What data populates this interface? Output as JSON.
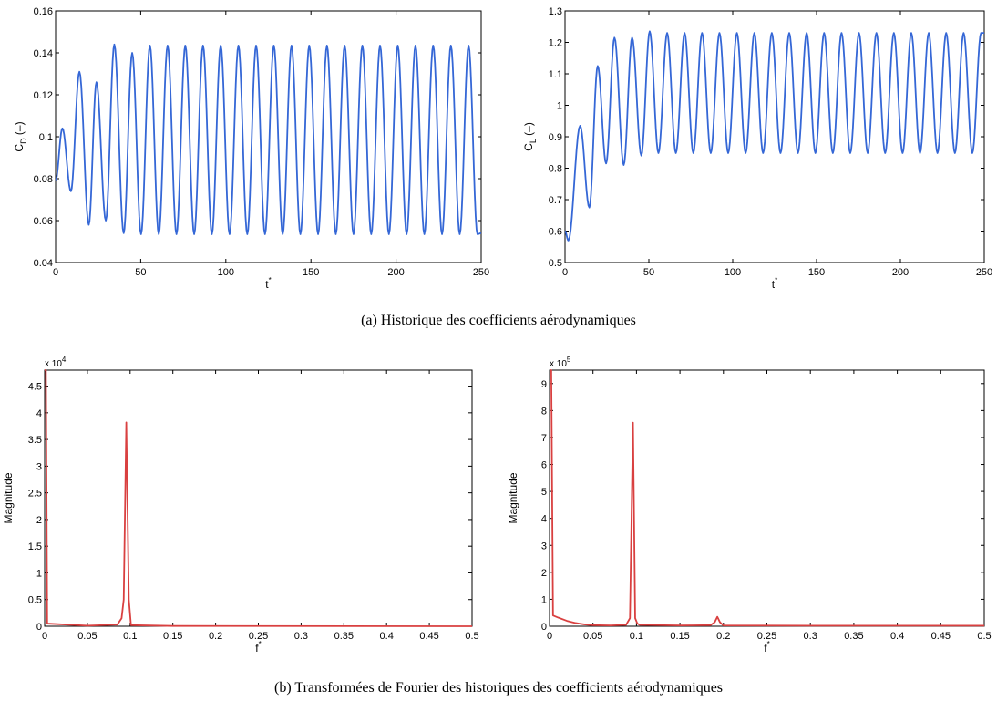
{
  "captions": {
    "a": "(a)  Historique des coefficients aérodynamiques",
    "b": "(b)  Transformées de Fourier des historiques des coefficients aérodynamiques"
  },
  "chart_data": [
    {
      "type": "line",
      "ylabel_main": "C",
      "ylabel_sub": "D",
      "ylabel_unit": " (–)",
      "xlabel_main": "t",
      "xlabel_sup": "*",
      "xlim": [
        0,
        250
      ],
      "ylim": [
        0.04,
        0.16
      ],
      "xticks": [
        0,
        50,
        100,
        150,
        200,
        250
      ],
      "yticks": [
        0.04,
        0.06,
        0.08,
        0.1,
        0.12,
        0.14,
        0.16
      ],
      "yticklabels": [
        "0.04",
        "0.06",
        "0.08",
        "0.1",
        "0.12",
        "0.14",
        "0.16"
      ],
      "color": "#3567d6",
      "signal": {
        "period": 10.4,
        "start_value": 0.079,
        "peaks": [
          [
            4,
            0.104
          ],
          [
            14,
            0.131
          ],
          [
            24,
            0.126
          ],
          [
            34.5,
            0.144
          ],
          [
            45,
            0.14
          ]
        ],
        "troughs": [
          [
            9,
            0.074
          ],
          [
            19.5,
            0.058
          ],
          [
            29.5,
            0.06
          ],
          [
            40,
            0.054
          ]
        ],
        "steady_max": 0.1435,
        "steady_min": 0.0535,
        "end_value": 0.054
      }
    },
    {
      "type": "line",
      "ylabel_main": "C",
      "ylabel_sub": "L",
      "ylabel_unit": " (–)",
      "xlabel_main": "t",
      "xlabel_sup": "*",
      "xlim": [
        0,
        250
      ],
      "ylim": [
        0.5,
        1.3
      ],
      "xticks": [
        0,
        50,
        100,
        150,
        200,
        250
      ],
      "yticks": [
        0.5,
        0.6,
        0.7,
        0.8,
        0.9,
        1,
        1.1,
        1.2,
        1.3
      ],
      "yticklabels": [
        "0.5",
        "0.6",
        "0.7",
        "0.8",
        "0.9",
        "1",
        "1.1",
        "1.2",
        "1.3"
      ],
      "color": "#3567d6",
      "signal": {
        "period": 10.4,
        "start_value": 0.6,
        "peaks": [
          [
            9,
            0.935
          ],
          [
            19.5,
            1.125
          ],
          [
            29.5,
            1.215
          ],
          [
            40,
            1.215
          ],
          [
            50.5,
            1.235
          ]
        ],
        "troughs": [
          [
            2,
            0.57
          ],
          [
            14.5,
            0.675
          ],
          [
            24.5,
            0.815
          ],
          [
            35,
            0.81
          ],
          [
            45.5,
            0.84
          ]
        ],
        "steady_max": 1.23,
        "steady_min": 0.848,
        "end_value": 1.23
      }
    },
    {
      "type": "line",
      "ylabel_main": "Magnitude",
      "xlabel_main": "f",
      "xlabel_sup": "*",
      "multiplier": "x 10",
      "multiplier_exp": "4",
      "xlim": [
        0,
        0.5
      ],
      "ylim": [
        0,
        4.8
      ],
      "xticks": [
        0,
        0.05,
        0.1,
        0.15,
        0.2,
        0.25,
        0.3,
        0.35,
        0.4,
        0.45,
        0.5
      ],
      "xticklabels": [
        "0",
        "0.05",
        "0.1",
        "0.15",
        "0.2",
        "0.25",
        "0.3",
        "0.35",
        "0.4",
        "0.45",
        "0.5"
      ],
      "yticks": [
        0,
        0.5,
        1,
        1.5,
        2,
        2.5,
        3,
        3.5,
        4,
        4.5
      ],
      "yticklabels": [
        "0",
        "0.5",
        "1",
        "1.5",
        "2",
        "2.5",
        "3",
        "3.5",
        "4",
        "4.5"
      ],
      "color": "#d94040",
      "points": [
        [
          0,
          4.8
        ],
        [
          0.0015,
          4.8
        ],
        [
          0.003,
          0.05
        ],
        [
          0.05,
          0.01
        ],
        [
          0.085,
          0.03
        ],
        [
          0.09,
          0.15
        ],
        [
          0.0925,
          0.5
        ],
        [
          0.0955,
          3.82
        ],
        [
          0.0985,
          0.5
        ],
        [
          0.101,
          0.02
        ],
        [
          0.15,
          0.005
        ],
        [
          0.5,
          0.0
        ]
      ]
    },
    {
      "type": "line",
      "ylabel_main": "Magnitude",
      "xlabel_main": "f",
      "xlabel_sup": "*",
      "multiplier": "x 10",
      "multiplier_exp": "5",
      "xlim": [
        0,
        0.5
      ],
      "ylim": [
        0,
        9.5
      ],
      "xticks": [
        0,
        0.05,
        0.1,
        0.15,
        0.2,
        0.25,
        0.3,
        0.35,
        0.4,
        0.45,
        0.5
      ],
      "xticklabels": [
        "0",
        "0.05",
        "0.1",
        "0.15",
        "0.2",
        "0.25",
        "0.3",
        "0.35",
        "0.4",
        "0.45",
        "0.5"
      ],
      "yticks": [
        0,
        1,
        2,
        3,
        4,
        5,
        6,
        7,
        8,
        9
      ],
      "yticklabels": [
        "0",
        "1",
        "2",
        "3",
        "4",
        "5",
        "6",
        "7",
        "8",
        "9"
      ],
      "color": "#d94040",
      "points": [
        [
          0,
          9.5
        ],
        [
          0.002,
          9.5
        ],
        [
          0.004,
          0.4
        ],
        [
          0.01,
          0.32
        ],
        [
          0.02,
          0.2
        ],
        [
          0.03,
          0.12
        ],
        [
          0.04,
          0.07
        ],
        [
          0.05,
          0.04
        ],
        [
          0.07,
          0.03
        ],
        [
          0.088,
          0.05
        ],
        [
          0.0925,
          0.3
        ],
        [
          0.096,
          7.55
        ],
        [
          0.0985,
          0.3
        ],
        [
          0.101,
          0.1
        ],
        [
          0.104,
          0.05
        ],
        [
          0.15,
          0.03
        ],
        [
          0.185,
          0.04
        ],
        [
          0.19,
          0.15
        ],
        [
          0.193,
          0.35
        ],
        [
          0.196,
          0.15
        ],
        [
          0.2,
          0.03
        ],
        [
          0.3,
          0.02
        ],
        [
          0.5,
          0.02
        ]
      ]
    }
  ]
}
